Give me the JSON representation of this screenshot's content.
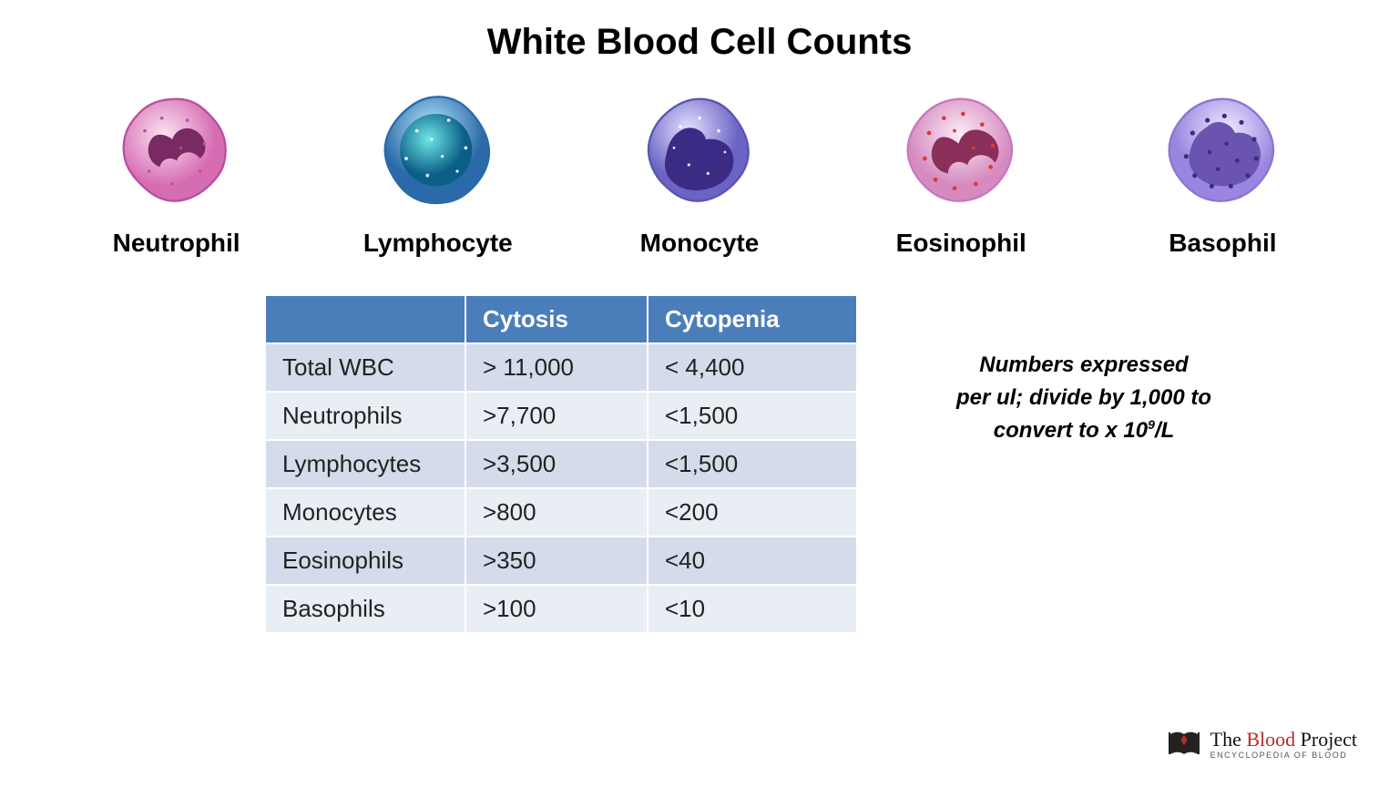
{
  "title": "White Blood Cell Counts",
  "cells": [
    {
      "name": "Neutrophil"
    },
    {
      "name": "Lymphocyte"
    },
    {
      "name": "Monocyte"
    },
    {
      "name": "Eosinophil"
    },
    {
      "name": "Basophil"
    }
  ],
  "table": {
    "columns": [
      "",
      "Cytosis",
      "Cytopenia"
    ],
    "header_bg": "#4a7ebb",
    "header_fg": "#ffffff",
    "row_bg_odd": "#d4dbea",
    "row_bg_even": "#e9edf4",
    "rows": [
      [
        "Total WBC",
        "> 11,000",
        "< 4,400"
      ],
      [
        "Neutrophils",
        ">7,700",
        "<1,500"
      ],
      [
        "Lymphocytes",
        ">3,500",
        "<1,500"
      ],
      [
        "Monocytes",
        ">800",
        "<200"
      ],
      [
        "Eosinophils",
        ">350",
        "<40"
      ],
      [
        "Basophils",
        ">100",
        "<10"
      ]
    ]
  },
  "note": {
    "line1": "Numbers expressed",
    "line2": "per ul; divide by 1,000 to",
    "line3_pre": "convert to x 10",
    "line3_sup": "9",
    "line3_post": "/L"
  },
  "brand": {
    "prefix": "The ",
    "accent": "Blood",
    "suffix": " Project",
    "subtitle": "ENCYCLOPEDIA OF BLOOD"
  },
  "colors": {
    "neutrophil_body": "#e78fc7",
    "neutrophil_edge": "#b84fa0",
    "neutrophil_nucleus": "#7a2a63",
    "lymphocyte_body": "#4aa3d8",
    "lymphocyte_edge": "#2a6aa8",
    "lymphocyte_nucleus": "#1e8aa8",
    "monocyte_body": "#8a86d8",
    "monocyte_edge": "#5a54b0",
    "monocyte_nucleus": "#3b2b85",
    "eosinophil_body": "#e8a8d0",
    "eosinophil_edge": "#c779b9",
    "eosinophil_nucleus": "#8a2f5a",
    "eosinophil_granule": "#d83a3a",
    "basophil_body": "#b9a8e8",
    "basophil_edge": "#8a76d0",
    "basophil_nucleus": "#6a54b0",
    "basophil_granule": "#3b2b85"
  }
}
